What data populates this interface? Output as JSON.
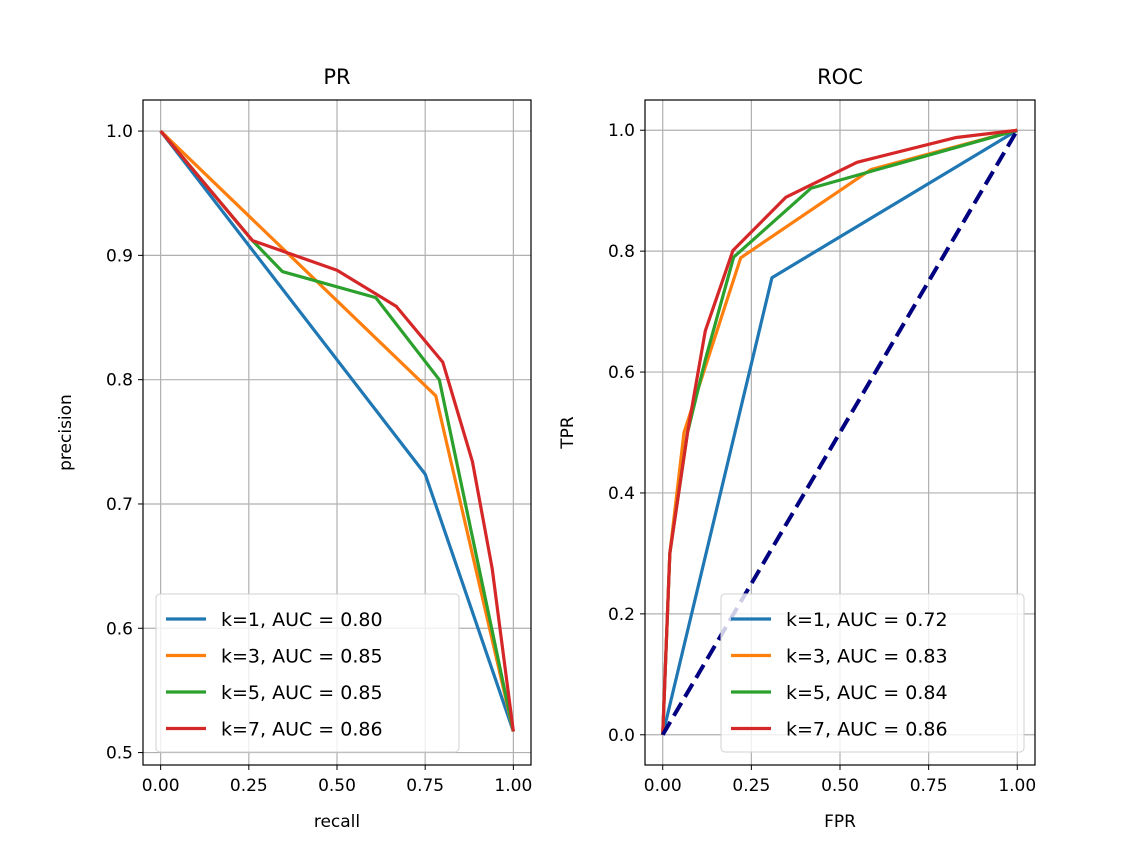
{
  "chart_data": [
    {
      "type": "line",
      "title": "PR",
      "xlabel": "recall",
      "ylabel": "precision",
      "xlim": [
        -0.05,
        1.05
      ],
      "ylim": [
        0.49,
        1.025
      ],
      "xticks": [
        "0.00",
        "0.25",
        "0.50",
        "0.75",
        "1.00"
      ],
      "yticks": [
        "0.5",
        "0.6",
        "0.7",
        "0.8",
        "0.9",
        "1.0"
      ],
      "grid": true,
      "legend_position": "lower-left",
      "series": [
        {
          "name": "k=1, AUC = 0.80",
          "color": "#1f77b4",
          "x": [
            0,
            0.75,
            1.0
          ],
          "y": [
            1.0,
            0.724,
            0.517
          ]
        },
        {
          "name": "k=3, AUC = 0.85",
          "color": "#ff7f0e",
          "x": [
            0,
            0.78,
            1.0
          ],
          "y": [
            1.0,
            0.787,
            0.517
          ]
        },
        {
          "name": "k=5, AUC = 0.85",
          "color": "#2ca02c",
          "x": [
            0,
            0.26,
            0.345,
            0.61,
            0.79,
            1.0
          ],
          "y": [
            1.0,
            0.912,
            0.887,
            0.866,
            0.8,
            0.517
          ]
        },
        {
          "name": "k=7, AUC = 0.86",
          "color": "#d62728",
          "x": [
            0,
            0.26,
            0.5,
            0.668,
            0.8,
            0.884,
            0.94,
            1.0
          ],
          "y": [
            1.0,
            0.912,
            0.888,
            0.859,
            0.814,
            0.734,
            0.648,
            0.517
          ]
        }
      ]
    },
    {
      "type": "line",
      "title": "ROC",
      "xlabel": "FPR",
      "ylabel": "TPR",
      "xlim": [
        -0.05,
        1.05
      ],
      "ylim": [
        -0.05,
        1.05
      ],
      "xticks": [
        "0.00",
        "0.25",
        "0.50",
        "0.75",
        "1.00"
      ],
      "yticks": [
        "0.0",
        "0.2",
        "0.4",
        "0.6",
        "0.8",
        "1.0"
      ],
      "grid": true,
      "legend_position": "lower-right",
      "diagonal": {
        "color": "#000080",
        "style": "dashed",
        "x": [
          0,
          1
        ],
        "y": [
          0,
          1
        ]
      },
      "series": [
        {
          "name": "k=1, AUC = 0.72",
          "color": "#1f77b4",
          "x": [
            0,
            0.308,
            1.0
          ],
          "y": [
            0,
            0.756,
            1.0
          ]
        },
        {
          "name": "k=3, AUC = 0.83",
          "color": "#ff7f0e",
          "x": [
            0,
            0.02,
            0.06,
            0.22,
            0.587,
            1.0
          ],
          "y": [
            0,
            0.3,
            0.5,
            0.789,
            0.935,
            1.0
          ]
        },
        {
          "name": "k=5, AUC = 0.84",
          "color": "#2ca02c",
          "x": [
            0,
            0.02,
            0.07,
            0.12,
            0.2,
            0.418,
            1.0
          ],
          "y": [
            0,
            0.3,
            0.5,
            0.62,
            0.79,
            0.904,
            1.0
          ]
        },
        {
          "name": "k=7, AUC = 0.86",
          "color": "#d62728",
          "x": [
            0,
            0.02,
            0.07,
            0.12,
            0.198,
            0.347,
            0.548,
            0.828,
            1.0
          ],
          "y": [
            0,
            0.3,
            0.5,
            0.668,
            0.801,
            0.889,
            0.947,
            0.988,
            1.0
          ]
        }
      ]
    }
  ]
}
